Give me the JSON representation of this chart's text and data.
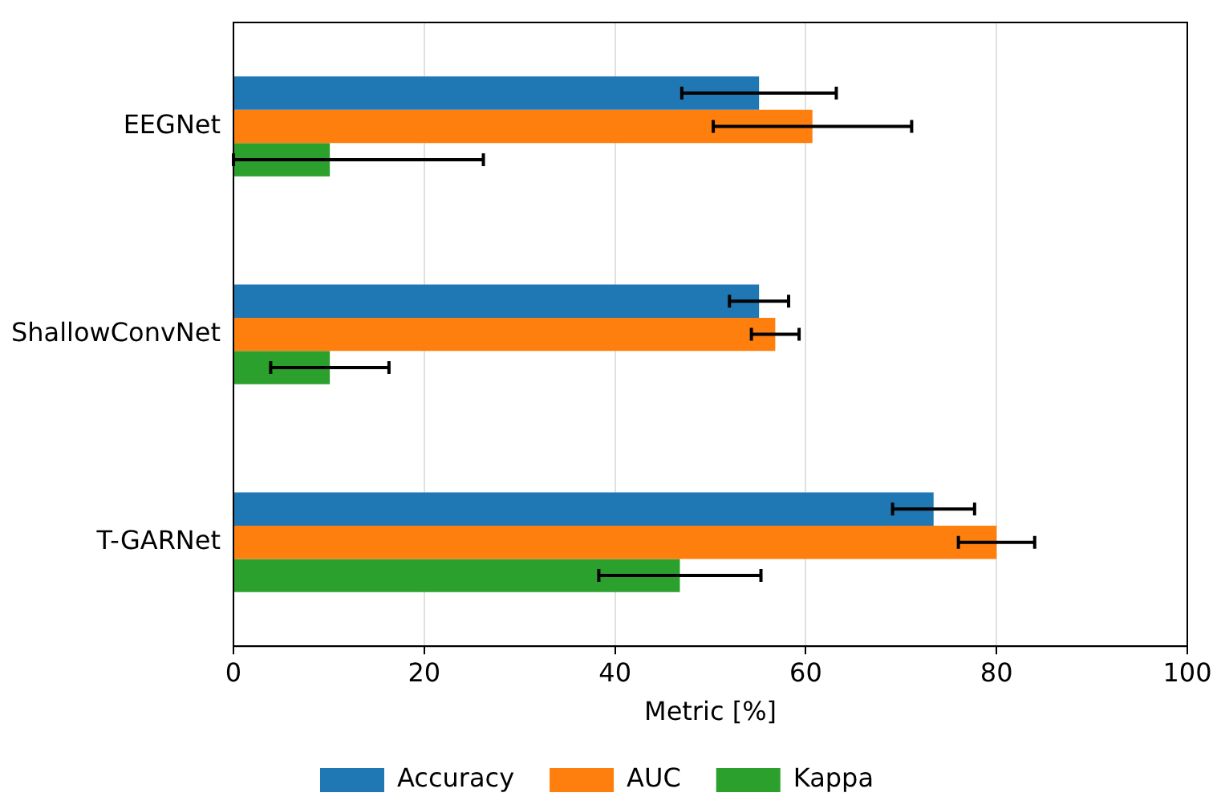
{
  "chart_data": {
    "type": "bar",
    "orientation": "horizontal",
    "xlabel": "Metric [%]",
    "categories": [
      "EEGNet",
      "ShallowConvNet",
      "T-GARNet"
    ],
    "series": [
      {
        "name": "Accuracy",
        "color": "#1f77b4",
        "values": [
          55.1,
          55.1,
          73.4
        ],
        "errors": [
          8.1,
          3.1,
          4.3
        ]
      },
      {
        "name": "AUC",
        "color": "#ff7f0e",
        "values": [
          60.7,
          56.8,
          80.0
        ],
        "errors": [
          10.4,
          2.5,
          4.0
        ]
      },
      {
        "name": "Kappa",
        "color": "#2ca02c",
        "values": [
          10.1,
          10.1,
          46.8
        ],
        "errors": [
          [
            0,
            26.2
          ],
          6.2,
          8.5
        ]
      }
    ],
    "xlim": [
      0,
      100
    ],
    "xticks": [
      0,
      20,
      40,
      60,
      80,
      100
    ],
    "grid": "x",
    "legend": "bottom"
  }
}
